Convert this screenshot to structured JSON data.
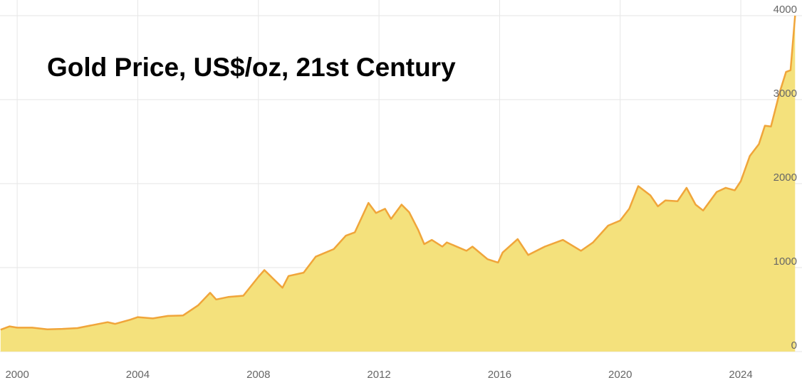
{
  "chart_data": {
    "type": "area",
    "title": "Gold Price, US$/oz, 21st Century",
    "x": [
      1999.45,
      1999.75,
      2000.0,
      2000.5,
      2001.0,
      2001.5,
      2002.0,
      2002.5,
      2003.0,
      2003.25,
      2003.75,
      2004.0,
      2004.5,
      2005.0,
      2005.5,
      2006.0,
      2006.4,
      2006.6,
      2007.0,
      2007.5,
      2008.0,
      2008.2,
      2008.8,
      2009.0,
      2009.5,
      2009.9,
      2010.5,
      2010.9,
      2011.2,
      2011.65,
      2011.9,
      2012.2,
      2012.4,
      2012.75,
      2013.0,
      2013.3,
      2013.5,
      2013.75,
      2014.1,
      2014.25,
      2014.9,
      2015.1,
      2015.6,
      2015.95,
      2016.1,
      2016.6,
      2016.95,
      2017.5,
      2018.1,
      2018.7,
      2019.1,
      2019.6,
      2020.0,
      2020.3,
      2020.6,
      2021.0,
      2021.25,
      2021.5,
      2021.9,
      2022.2,
      2022.5,
      2022.75,
      2023.2,
      2023.5,
      2023.8,
      2024.0,
      2024.3,
      2024.6,
      2024.8,
      2025.0,
      2025.3,
      2025.5,
      2025.65,
      2025.8
    ],
    "series": [
      {
        "name": "Gold price",
        "color": "#f0a53a",
        "fill": "#f4e17c",
        "values": [
          260,
          300,
          285,
          285,
          265,
          270,
          280,
          315,
          350,
          330,
          380,
          410,
          395,
          425,
          430,
          550,
          700,
          620,
          650,
          665,
          890,
          970,
          760,
          900,
          940,
          1130,
          1220,
          1380,
          1420,
          1770,
          1650,
          1700,
          1580,
          1750,
          1660,
          1450,
          1280,
          1330,
          1250,
          1300,
          1200,
          1250,
          1100,
          1060,
          1180,
          1340,
          1150,
          1250,
          1330,
          1200,
          1300,
          1500,
          1560,
          1700,
          1970,
          1860,
          1730,
          1800,
          1790,
          1950,
          1750,
          1680,
          1900,
          1950,
          1920,
          2030,
          2330,
          2470,
          2690,
          2680,
          3100,
          3330,
          3350,
          4000
        ]
      }
    ],
    "xlim": [
      1999.43,
      2026.03
    ],
    "ylim": [
      0,
      4000
    ],
    "xticks": [
      2000,
      2004,
      2008,
      2012,
      2016,
      2020,
      2024
    ],
    "yticks": [
      0,
      1000,
      2000,
      3000,
      4000
    ],
    "grid": true
  }
}
